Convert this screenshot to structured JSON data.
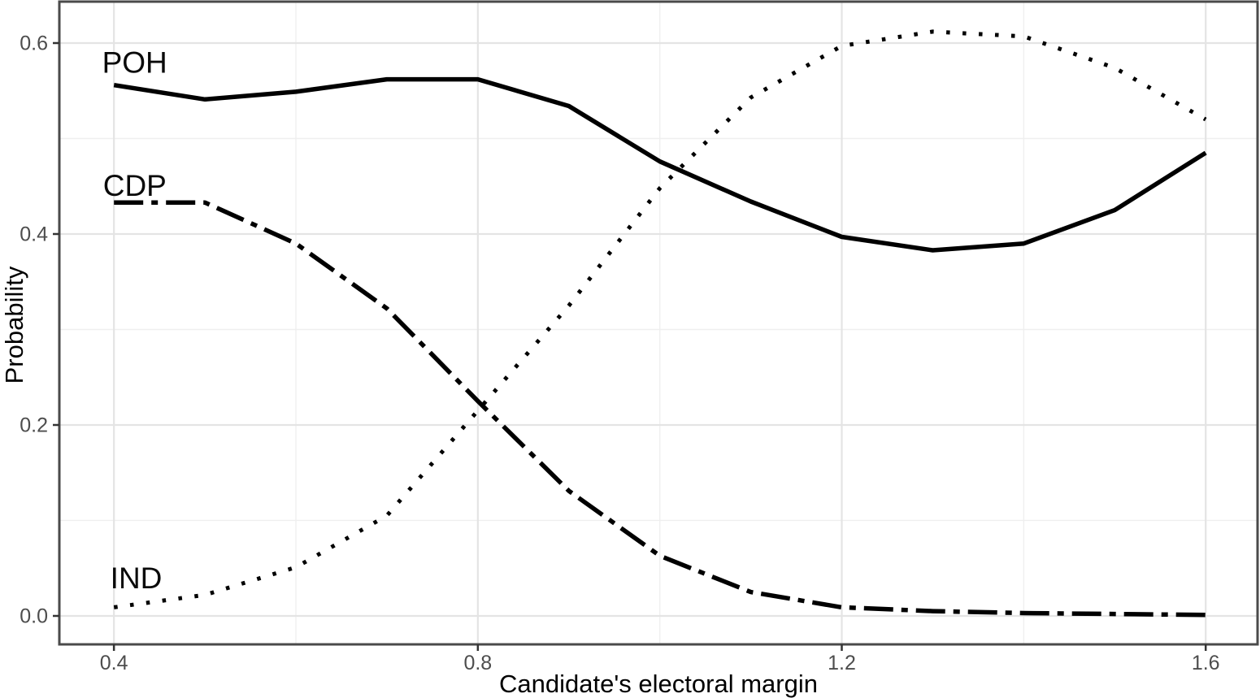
{
  "chart_data": {
    "type": "line",
    "title": "",
    "xlabel": "Candidate's electoral margin",
    "ylabel": "Probability",
    "x": [
      0.4,
      0.5,
      0.6,
      0.7,
      0.8,
      0.9,
      1.0,
      1.1,
      1.2,
      1.3,
      1.4,
      1.5,
      1.6
    ],
    "series": [
      {
        "name": "POH",
        "linestyle": "solid",
        "values": [
          0.556,
          0.541,
          0.549,
          0.562,
          0.562,
          0.534,
          0.476,
          0.434,
          0.397,
          0.383,
          0.39,
          0.425,
          0.485
        ]
      },
      {
        "name": "CDP",
        "linestyle": "dashdot",
        "values": [
          0.433,
          0.433,
          0.39,
          0.322,
          0.225,
          0.131,
          0.063,
          0.025,
          0.009,
          0.005,
          0.003,
          0.002,
          0.001
        ]
      },
      {
        "name": "IND",
        "linestyle": "dotted",
        "values": [
          0.009,
          0.022,
          0.051,
          0.105,
          0.215,
          0.325,
          0.448,
          0.543,
          0.597,
          0.612,
          0.607,
          0.574,
          0.52
        ]
      }
    ],
    "annotations": [
      {
        "text": "POH",
        "x": 0.387,
        "y": 0.58
      },
      {
        "text": "CDP",
        "x": 0.388,
        "y": 0.451
      },
      {
        "text": "IND",
        "x": 0.396,
        "y": 0.04
      }
    ],
    "xlim": [
      0.34,
      1.657
    ],
    "ylim": [
      -0.0298,
      0.6434
    ],
    "x_major_ticks": [
      0.4,
      0.8,
      1.2,
      1.6
    ],
    "x_minor_ticks": [
      0.6,
      1.0,
      1.4
    ],
    "y_major_ticks": [
      0.0,
      0.2,
      0.4,
      0.6
    ],
    "y_minor_ticks": [
      0.1,
      0.3,
      0.5
    ],
    "x_tick_labels": [
      "0.4",
      "0.8",
      "1.2",
      "1.6"
    ],
    "y_tick_labels": [
      "0.0",
      "0.2",
      "0.4",
      "0.6"
    ],
    "grid": "major+minor",
    "legend": "inline-labels"
  },
  "style": {
    "background": "#ffffff",
    "line_color": "#000000",
    "grid_major_color": "#e4e4e4",
    "grid_minor_color": "#efefef",
    "panel_border_color": "#4a4a4a",
    "tick_color": "#333333",
    "tick_label_color": "#4d4d4d",
    "axis_title_color": "#000000"
  }
}
